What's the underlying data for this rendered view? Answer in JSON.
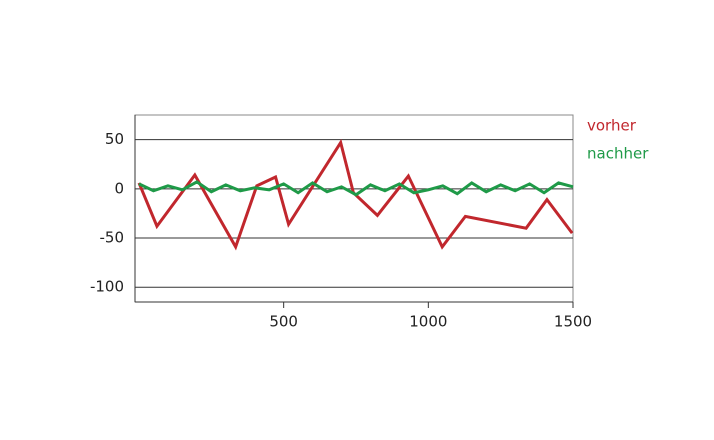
{
  "chart_data": {
    "type": "line",
    "series": [
      {
        "name": "vorher",
        "color": "#c1272d",
        "x": [
          0,
          62,
          193,
          334,
          407,
          472,
          517,
          697,
          741,
          824,
          931,
          1048,
          1128,
          1338,
          1410,
          1497
        ],
        "values": [
          6,
          -38,
          14,
          -59,
          3,
          12,
          -36,
          47,
          -4,
          -27,
          13,
          -59,
          -28,
          -40,
          -11,
          -45
        ]
      },
      {
        "name": "nachher",
        "color": "#1f9a48",
        "x": [
          0,
          50,
          100,
          150,
          200,
          250,
          300,
          350,
          400,
          450,
          500,
          550,
          600,
          650,
          700,
          750,
          800,
          850,
          900,
          950,
          1000,
          1050,
          1100,
          1150,
          1200,
          1250,
          1300,
          1350,
          1400,
          1450,
          1500
        ],
        "values": [
          5,
          -2,
          3,
          -1,
          7,
          -3,
          4,
          -2,
          1,
          -1,
          5,
          -4,
          6,
          -3,
          2,
          -6,
          4,
          -2,
          5,
          -4,
          -1,
          3,
          -5,
          6,
          -3,
          4,
          -2,
          5,
          -4,
          6,
          2
        ]
      }
    ],
    "xlim": [
      0,
      1500
    ],
    "xticks": [
      500,
      1000,
      1500
    ],
    "ylim": [
      -115,
      75
    ],
    "yticks": [
      -100,
      -50,
      0,
      50
    ],
    "grid": true,
    "legend": "right"
  }
}
